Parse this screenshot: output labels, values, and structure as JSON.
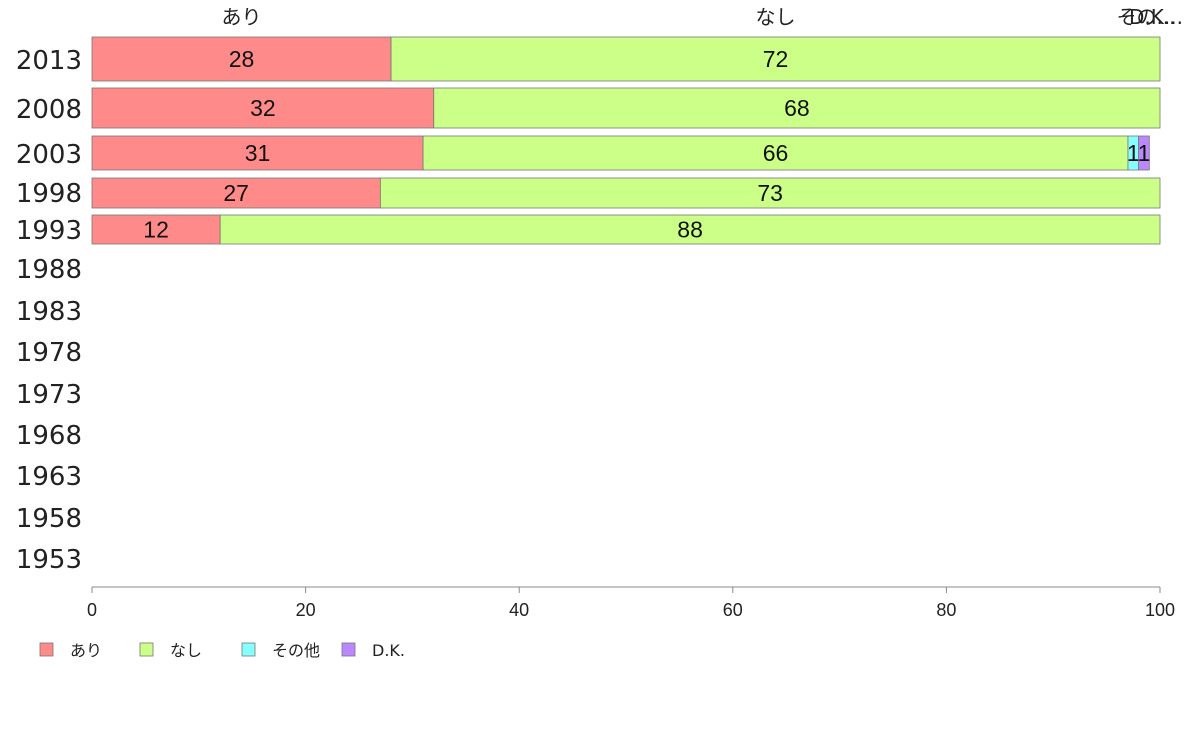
{
  "chart_data": {
    "type": "bar",
    "orientation": "horizontal",
    "stacked": true,
    "categories": [
      "2013",
      "2008",
      "2003",
      "1998",
      "1993",
      "1988",
      "1983",
      "1978",
      "1973",
      "1968",
      "1963",
      "1958",
      "1953"
    ],
    "series": [
      {
        "name": "あり",
        "color": "#ff8a8a",
        "values": [
          28,
          32,
          31,
          27,
          12,
          null,
          null,
          null,
          null,
          null,
          null,
          null,
          null
        ]
      },
      {
        "name": "なし",
        "color": "#ccff88",
        "values": [
          72,
          68,
          66,
          73,
          88,
          null,
          null,
          null,
          null,
          null,
          null,
          null,
          null
        ]
      },
      {
        "name": "その他",
        "color": "#88ffff",
        "values": [
          0,
          0,
          1,
          0,
          0,
          null,
          null,
          null,
          null,
          null,
          null,
          null,
          null
        ]
      },
      {
        "name": "D.K.",
        "color": "#bb88ff",
        "values": [
          0,
          0,
          1,
          0,
          0,
          null,
          null,
          null,
          null,
          null,
          null,
          null,
          null
        ]
      }
    ],
    "top_labels": [
      "あり",
      "なし",
      "その他",
      "D.K."
    ],
    "top_labels_display": [
      "あり",
      "なし",
      "その...",
      "D.K..."
    ],
    "xlim": [
      0,
      100
    ],
    "xticks": [
      0,
      20,
      40,
      60,
      80,
      100
    ],
    "legend_position": "bottom-left",
    "grid": false
  }
}
